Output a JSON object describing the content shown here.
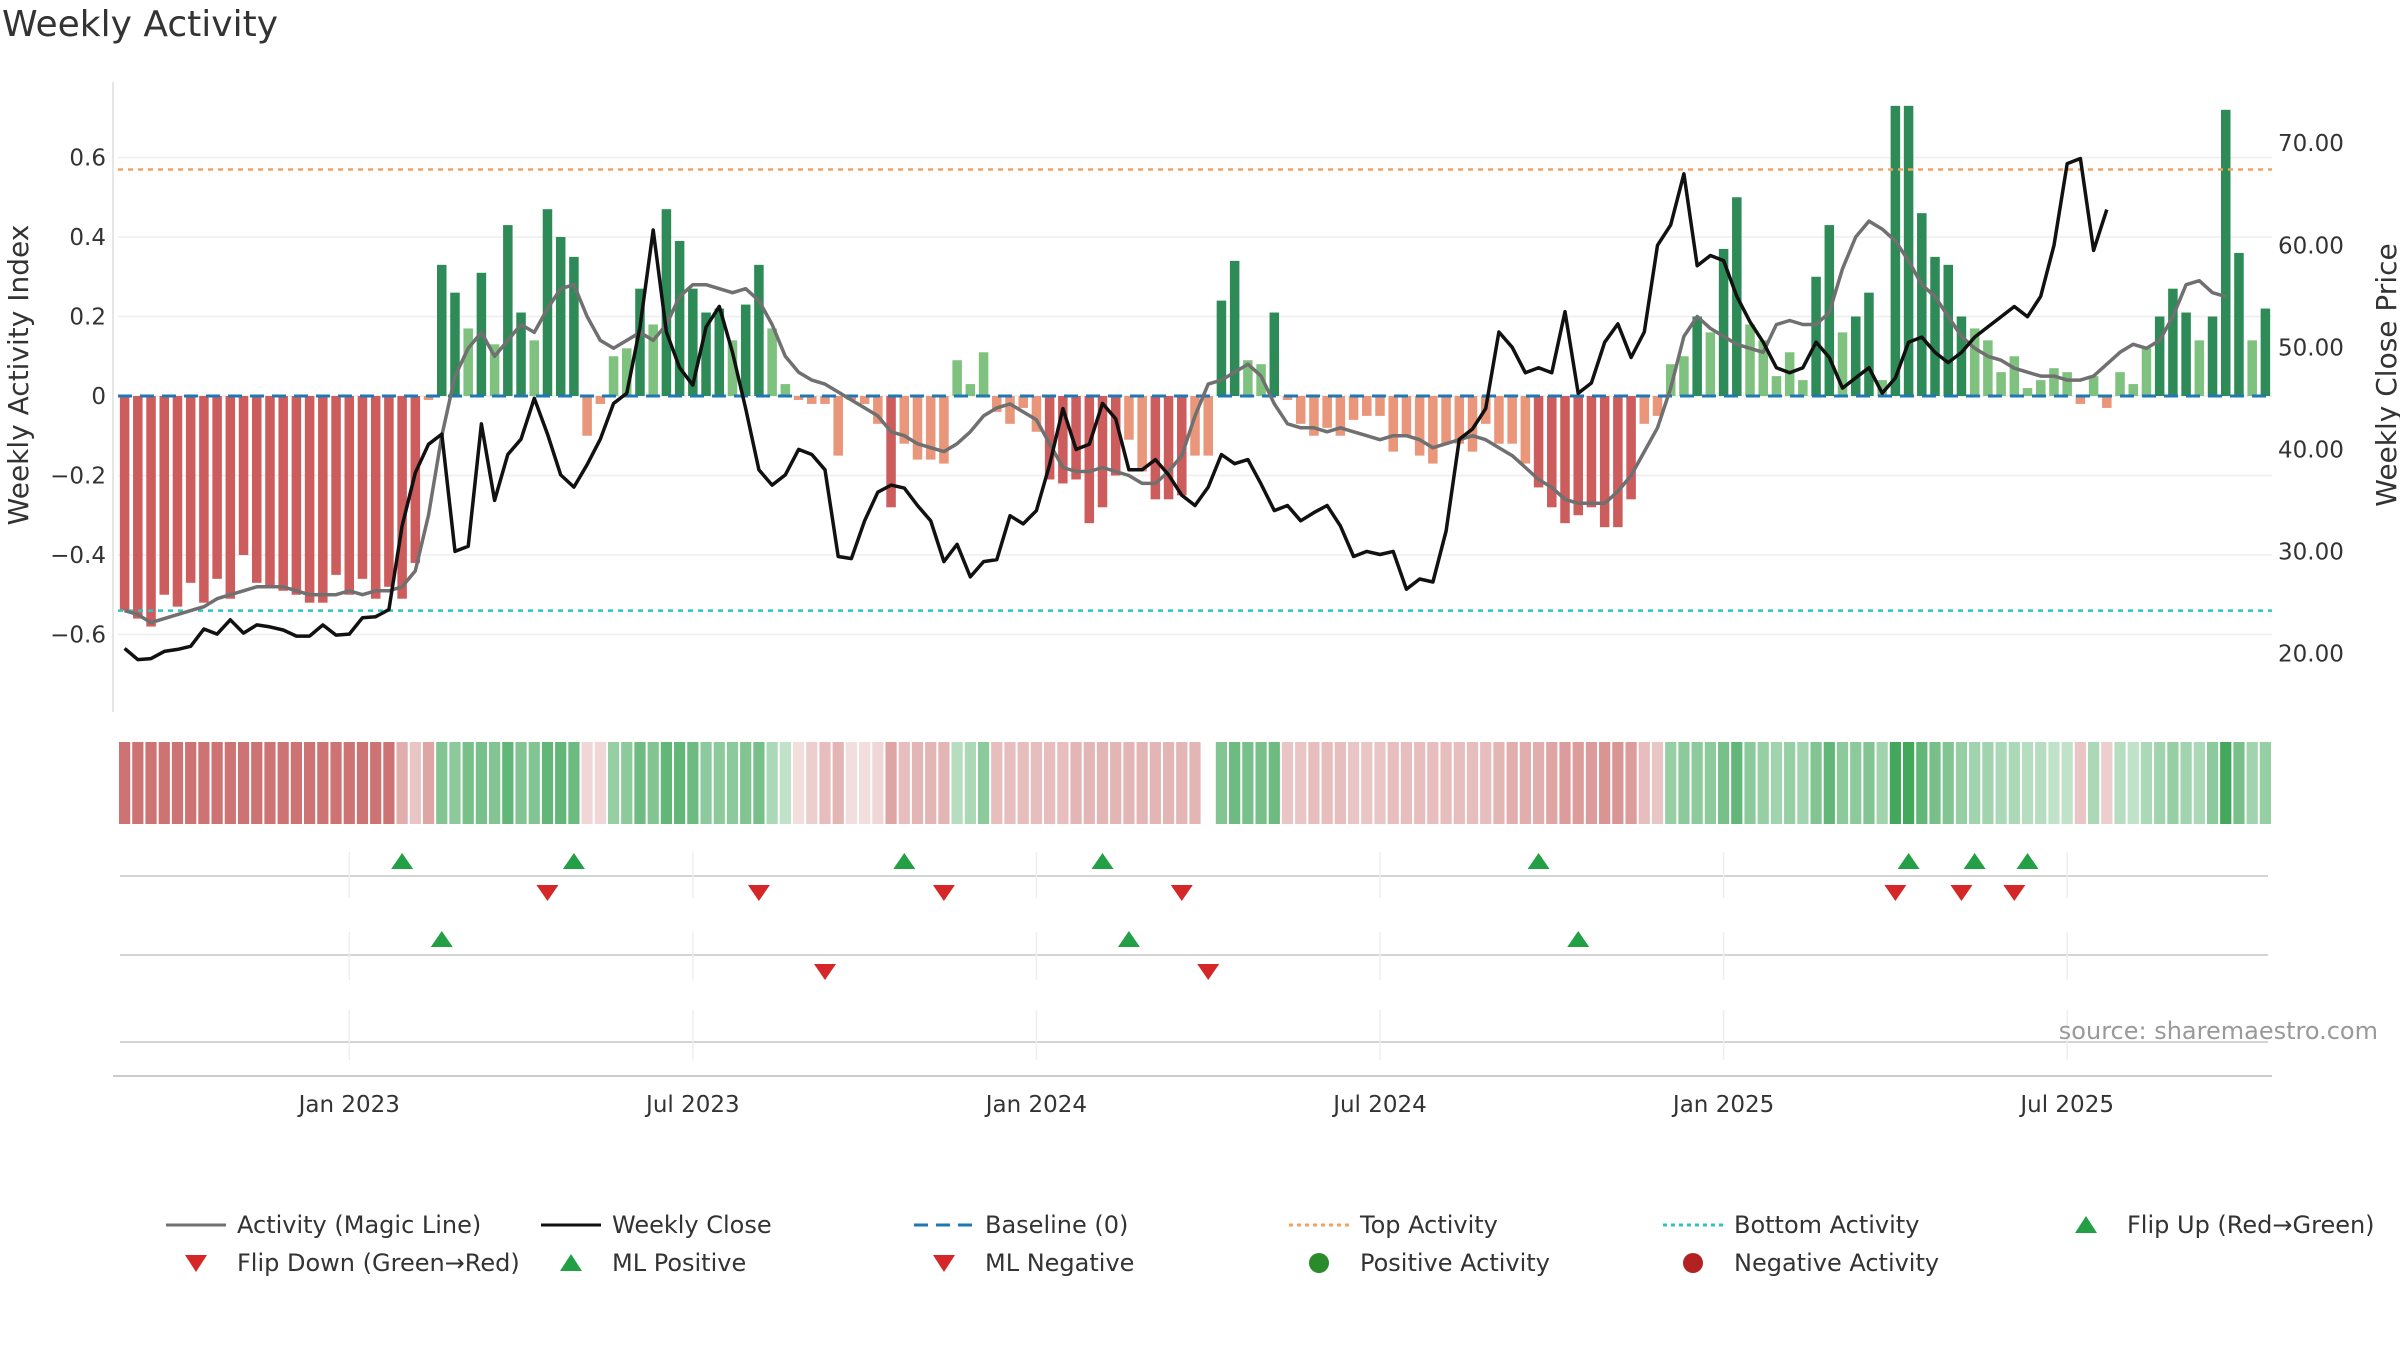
{
  "chart_data": {
    "type": "bar",
    "title": "Weekly Activity",
    "ylabel": "Weekly Activity Index",
    "y2label": "Weekly Close Price",
    "source": "source: sharemaestro.com",
    "ylim": [
      -0.79,
      0.79
    ],
    "y2lim": [
      14.46,
      76.0
    ],
    "yticks": [
      {
        "v": 0.6,
        "label": "0.6"
      },
      {
        "v": 0.4,
        "label": "0.4"
      },
      {
        "v": 0.2,
        "label": "0.2"
      },
      {
        "v": 0,
        "label": "0"
      },
      {
        "v": -0.2,
        "label": "−0.2"
      },
      {
        "v": -0.4,
        "label": "−0.4"
      },
      {
        "v": -0.6,
        "label": "−0.6"
      }
    ],
    "y2ticks": [
      {
        "v": 70,
        "label": "70.00"
      },
      {
        "v": 60,
        "label": "60.00"
      },
      {
        "v": 50,
        "label": "50.00"
      },
      {
        "v": 40,
        "label": "40.00"
      },
      {
        "v": 30,
        "label": "30.00"
      },
      {
        "v": 20,
        "label": "20.00"
      }
    ],
    "xticks": [
      {
        "i": 17,
        "label": "Jan 2023"
      },
      {
        "i": 43,
        "label": "Jul 2023"
      },
      {
        "i": 69,
        "label": "Jan 2024"
      },
      {
        "i": 95,
        "label": "Jul 2024"
      },
      {
        "i": 121,
        "label": "Jan 2025"
      },
      {
        "i": 147,
        "label": "Jul 2025"
      }
    ],
    "top_activity": 0.57,
    "bottom_activity": -0.54,
    "activity": [
      -0.54,
      -0.56,
      -0.58,
      -0.5,
      -0.53,
      -0.47,
      -0.52,
      -0.46,
      -0.51,
      -0.4,
      -0.47,
      -0.48,
      -0.49,
      -0.5,
      -0.52,
      -0.52,
      -0.45,
      -0.5,
      -0.46,
      -0.51,
      -0.48,
      -0.51,
      -0.42,
      -0.01,
      0.33,
      0.26,
      0.17,
      0.31,
      0.13,
      0.43,
      0.21,
      0.14,
      0.47,
      0.4,
      0.35,
      -0.1,
      -0.02,
      0.1,
      0.12,
      0.27,
      0.18,
      0.47,
      0.39,
      0.27,
      0.21,
      0.22,
      0.14,
      0.23,
      0.33,
      0.17,
      0.03,
      -0.01,
      -0.02,
      -0.02,
      -0.15,
      -0.01,
      -0.02,
      -0.07,
      -0.28,
      -0.12,
      -0.16,
      -0.16,
      -0.17,
      0.09,
      0.03,
      0.11,
      -0.04,
      -0.07,
      -0.03,
      -0.09,
      -0.21,
      -0.22,
      -0.21,
      -0.32,
      -0.28,
      -0.2,
      -0.11,
      -0.19,
      -0.26,
      -0.26,
      -0.25,
      -0.15,
      -0.15,
      0.24,
      0.34,
      0.09,
      0.08,
      0.21,
      -0.01,
      -0.07,
      -0.1,
      -0.08,
      -0.1,
      -0.06,
      -0.05,
      -0.05,
      -0.14,
      -0.1,
      -0.15,
      -0.17,
      -0.12,
      -0.12,
      -0.14,
      -0.07,
      -0.12,
      -0.12,
      -0.17,
      -0.23,
      -0.28,
      -0.32,
      -0.3,
      -0.28,
      -0.33,
      -0.33,
      -0.26,
      -0.07,
      -0.05,
      0.08,
      0.1,
      0.2,
      0.16,
      0.37,
      0.5,
      0.18,
      0.14,
      0.05,
      0.11,
      0.04,
      0.3,
      0.43,
      0.16,
      0.2,
      0.26,
      0.04,
      0.73,
      0.73,
      0.46,
      0.35,
      0.33,
      0.2,
      0.17,
      0.14,
      0.06,
      0.1,
      0.02,
      0.04,
      0.07,
      0.06,
      -0.02,
      0.05,
      -0.03,
      0.06,
      0.03,
      0.12,
      0.2,
      0.27,
      0.21,
      0.14,
      0.2,
      0.72,
      0.36,
      0.14,
      0.22
    ],
    "magic_line": [
      -0.54,
      -0.55,
      -0.57,
      -0.56,
      -0.55,
      -0.54,
      -0.53,
      -0.51,
      -0.5,
      -0.49,
      -0.48,
      -0.48,
      -0.48,
      -0.49,
      -0.5,
      -0.5,
      -0.5,
      -0.49,
      -0.5,
      -0.49,
      -0.49,
      -0.48,
      -0.44,
      -0.3,
      -0.1,
      0.05,
      0.12,
      0.16,
      0.1,
      0.14,
      0.18,
      0.16,
      0.22,
      0.27,
      0.28,
      0.2,
      0.14,
      0.12,
      0.14,
      0.16,
      0.14,
      0.18,
      0.25,
      0.28,
      0.28,
      0.27,
      0.26,
      0.27,
      0.24,
      0.18,
      0.1,
      0.06,
      0.04,
      0.03,
      0.01,
      -0.01,
      -0.03,
      -0.05,
      -0.09,
      -0.1,
      -0.12,
      -0.13,
      -0.14,
      -0.12,
      -0.09,
      -0.05,
      -0.03,
      -0.02,
      -0.04,
      -0.06,
      -0.12,
      -0.18,
      -0.19,
      -0.19,
      -0.18,
      -0.19,
      -0.2,
      -0.22,
      -0.22,
      -0.19,
      -0.15,
      -0.05,
      0.03,
      0.04,
      0.06,
      0.08,
      0.05,
      -0.02,
      -0.07,
      -0.08,
      -0.08,
      -0.09,
      -0.08,
      -0.09,
      -0.1,
      -0.11,
      -0.1,
      -0.1,
      -0.11,
      -0.13,
      -0.12,
      -0.11,
      -0.1,
      -0.11,
      -0.13,
      -0.15,
      -0.18,
      -0.21,
      -0.23,
      -0.26,
      -0.27,
      -0.27,
      -0.27,
      -0.24,
      -0.2,
      -0.14,
      -0.08,
      0.02,
      0.15,
      0.2,
      0.17,
      0.15,
      0.13,
      0.12,
      0.11,
      0.18,
      0.19,
      0.18,
      0.18,
      0.21,
      0.32,
      0.4,
      0.44,
      0.42,
      0.39,
      0.34,
      0.28,
      0.25,
      0.2,
      0.15,
      0.12,
      0.1,
      0.09,
      0.07,
      0.06,
      0.05,
      0.05,
      0.04,
      0.04,
      0.05,
      0.08,
      0.11,
      0.13,
      0.12,
      0.14,
      0.2,
      0.28,
      0.29,
      0.26,
      0.25
    ],
    "weekly_close": [
      20.5,
      19.4,
      19.5,
      20.2,
      20.4,
      20.7,
      22.4,
      21.9,
      23.3,
      22.0,
      22.8,
      22.6,
      22.3,
      21.7,
      21.7,
      22.8,
      21.8,
      21.9,
      23.5,
      23.6,
      24.3,
      32.5,
      37.7,
      40.5,
      41.5,
      30.0,
      30.5,
      42.5,
      35.0,
      39.5,
      41.0,
      45.0,
      41.5,
      37.5,
      36.3,
      38.5,
      41.0,
      44.5,
      45.5,
      52.0,
      61.5,
      51.5,
      48.0,
      46.3,
      52.0,
      54.0,
      49.5,
      44.0,
      38.0,
      36.5,
      37.5,
      40.0,
      39.5,
      38.0,
      29.5,
      29.3,
      33.0,
      35.8,
      36.5,
      36.2,
      34.5,
      33.0,
      29.0,
      30.7,
      27.5,
      29.0,
      29.2,
      33.5,
      32.7,
      34.0,
      38.5,
      44.0,
      40.0,
      40.5,
      44.5,
      43.0,
      38.0,
      38.0,
      39.0,
      37.5,
      35.5,
      34.5,
      36.3,
      39.5,
      38.6,
      39.0,
      36.6,
      34.0,
      34.5,
      33.0,
      33.8,
      34.5,
      32.5,
      29.5,
      30.0,
      29.7,
      30.0,
      26.3,
      27.3,
      27.0,
      32.0,
      41.0,
      42.0,
      44.0,
      51.5,
      50.0,
      47.5,
      48.0,
      47.5,
      53.5,
      45.5,
      46.5,
      50.5,
      52.3,
      49.0,
      51.5,
      60.0,
      62.0,
      67.0,
      58.0,
      59.0,
      58.5,
      55.0,
      52.5,
      50.5,
      48.0,
      47.5,
      48.0,
      50.5,
      49.0,
      46.0,
      47.0,
      48.0,
      45.5,
      47.0,
      50.5,
      51.0,
      49.5,
      48.5,
      49.5,
      51.0,
      52.0,
      53.0,
      54.0,
      53.0,
      55.0,
      60.0,
      68.0,
      68.5,
      59.5,
      63.5
    ],
    "heat_strength": [
      0.85,
      0.85,
      0.85,
      0.85,
      0.85,
      0.85,
      0.85,
      0.85,
      0.85,
      0.85,
      0.85,
      0.85,
      0.85,
      0.85,
      0.85,
      0.85,
      0.85,
      0.85,
      0.85,
      0.85,
      0.85,
      0.5,
      0.35,
      0.55,
      0.6,
      0.55,
      0.65,
      0.65,
      0.6,
      0.75,
      0.6,
      0.6,
      0.75,
      0.75,
      0.7,
      0.25,
      0.25,
      0.5,
      0.55,
      0.7,
      0.6,
      0.75,
      0.75,
      0.7,
      0.55,
      0.55,
      0.55,
      0.6,
      0.65,
      0.4,
      0.3,
      0.2,
      0.3,
      0.4,
      0.45,
      0.2,
      0.2,
      0.25,
      0.55,
      0.4,
      0.45,
      0.45,
      0.45,
      0.35,
      0.4,
      0.55,
      0.4,
      0.4,
      0.4,
      0.4,
      0.4,
      0.4,
      0.45,
      0.45,
      0.45,
      0.45,
      0.45,
      0.45,
      0.45,
      0.45,
      0.45,
      0.45,
      0.0,
      0.6,
      0.7,
      0.65,
      0.65,
      0.7,
      0.35,
      0.35,
      0.4,
      0.4,
      0.4,
      0.35,
      0.35,
      0.35,
      0.4,
      0.4,
      0.4,
      0.4,
      0.4,
      0.4,
      0.4,
      0.4,
      0.45,
      0.5,
      0.5,
      0.5,
      0.55,
      0.6,
      0.6,
      0.6,
      0.65,
      0.65,
      0.6,
      0.4,
      0.35,
      0.5,
      0.55,
      0.55,
      0.55,
      0.65,
      0.75,
      0.55,
      0.5,
      0.45,
      0.5,
      0.45,
      0.6,
      0.75,
      0.55,
      0.55,
      0.6,
      0.45,
      0.9,
      0.9,
      0.75,
      0.65,
      0.6,
      0.5,
      0.45,
      0.45,
      0.4,
      0.4,
      0.35,
      0.35,
      0.3,
      0.3,
      0.35,
      0.4,
      0.3,
      0.35,
      0.3,
      0.4,
      0.45,
      0.5,
      0.45,
      0.4,
      0.55,
      0.9,
      0.65,
      0.45,
      0.5
    ],
    "flip_up": [
      21,
      34,
      59,
      74,
      107,
      135,
      140,
      144
    ],
    "flip_down": [
      32,
      48,
      62,
      80,
      134,
      139,
      143
    ],
    "ml_positive": [
      24,
      76,
      110
    ],
    "ml_negative": [
      53,
      82
    ],
    "legend": [
      {
        "kind": "line",
        "color": "#707070",
        "dash": "",
        "label": "Activity (Magic Line)"
      },
      {
        "kind": "line",
        "color": "#111111",
        "dash": "",
        "label": "Weekly Close"
      },
      {
        "kind": "line",
        "color": "#1f77b4",
        "dash": "14,8",
        "label": "Baseline (0)"
      },
      {
        "kind": "line",
        "color": "#f4a261",
        "dash": "4,4",
        "label": "Top Activity"
      },
      {
        "kind": "line",
        "color": "#2ec4c4",
        "dash": "4,4",
        "label": "Bottom Activity"
      },
      {
        "kind": "tri-up",
        "color": "#23a045",
        "label": "Flip Up (Red→Green)"
      },
      {
        "kind": "tri-down",
        "color": "#d62728",
        "label": "Flip Down (Green→Red)"
      },
      {
        "kind": "tri-up",
        "color": "#23a045",
        "label": "ML Positive"
      },
      {
        "kind": "tri-down",
        "color": "#d62728",
        "label": "ML Negative"
      },
      {
        "kind": "dot",
        "color": "#2a8b2a",
        "label": "Positive Activity"
      },
      {
        "kind": "dot",
        "color": "#b22222",
        "label": "Negative Activity"
      }
    ],
    "colors": {
      "pos_strong": "#2e8b57",
      "pos_light": "#7fc17f",
      "neg_strong": "#cd5c5c",
      "neg_light": "#e9967a",
      "heat_pos": "#2e9e4a",
      "heat_neg": "#c45a5a",
      "close": "#111111",
      "magic": "#707070",
      "baseline": "#1f77b4",
      "top": "#f4a261",
      "bottom": "#2ec4c4",
      "up": "#23a045",
      "down": "#d62728"
    }
  }
}
